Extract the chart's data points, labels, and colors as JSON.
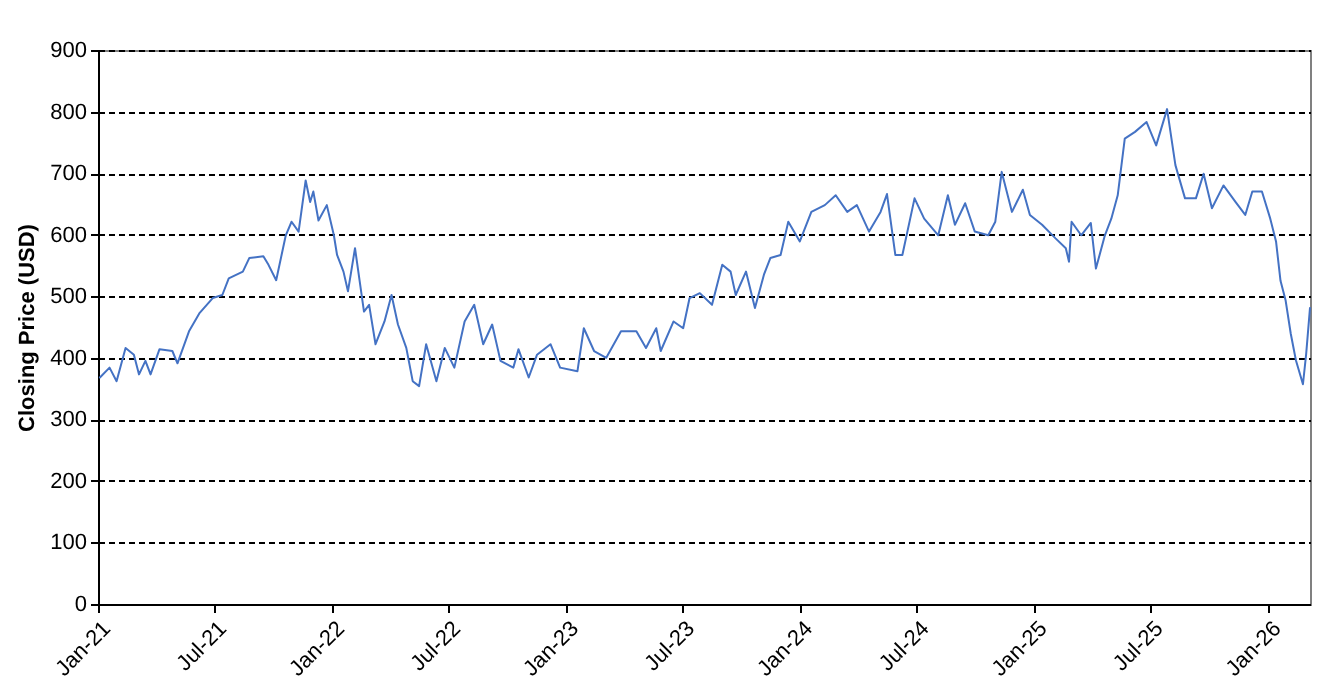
{
  "chart_data": {
    "type": "line",
    "ylabel": "Closing Price (USD)",
    "xlim": [
      "2021-01-01",
      "2026-03-07"
    ],
    "xticks": [
      {
        "value": "2021-01-01",
        "label": "Jan-21"
      },
      {
        "value": "2021-07-01",
        "label": "Jul-21"
      },
      {
        "value": "2022-01-01",
        "label": "Jan-22"
      },
      {
        "value": "2022-07-01",
        "label": "Jul-22"
      },
      {
        "value": "2023-01-01",
        "label": "Jan-23"
      },
      {
        "value": "2023-07-01",
        "label": "Jul-23"
      },
      {
        "value": "2024-01-01",
        "label": "Jan-24"
      },
      {
        "value": "2024-07-01",
        "label": "Jul-24"
      },
      {
        "value": "2025-01-01",
        "label": "Jan-25"
      },
      {
        "value": "2025-07-01",
        "label": "Jul-25"
      },
      {
        "value": "2026-01-01",
        "label": "Jan-26"
      }
    ],
    "ylim": [
      0,
      900
    ],
    "yticks": [
      0,
      100,
      200,
      300,
      400,
      500,
      600,
      700,
      800,
      900
    ],
    "grid": "y",
    "marker": "none",
    "line_style": "solid",
    "series": [
      {
        "color": "#4472c4",
        "x": [
          "2021-01-04",
          "2021-01-19",
          "2021-01-30",
          "2021-02-13",
          "2021-02-26",
          "2021-03-06",
          "2021-03-16",
          "2021-03-24",
          "2021-04-07",
          "2021-04-27",
          "2021-05-05",
          "2021-05-23",
          "2021-06-08",
          "2021-06-29",
          "2021-07-14",
          "2021-07-24",
          "2021-08-15",
          "2021-08-25",
          "2021-09-16",
          "2021-09-24",
          "2021-10-06",
          "2021-10-21",
          "2021-10-30",
          "2021-11-10",
          "2021-11-21",
          "2021-11-28",
          "2021-12-03",
          "2021-12-11",
          "2021-12-24",
          "2022-01-04",
          "2022-01-09",
          "2022-01-19",
          "2022-01-26",
          "2022-02-06",
          "2022-02-20",
          "2022-02-28",
          "2022-03-10",
          "2022-03-24",
          "2022-04-04",
          "2022-04-14",
          "2022-04-27",
          "2022-05-07",
          "2022-05-17",
          "2022-05-28",
          "2022-06-13",
          "2022-06-26",
          "2022-07-11",
          "2022-07-27",
          "2022-08-11",
          "2022-08-25",
          "2022-09-08",
          "2022-09-21",
          "2022-10-11",
          "2022-10-19",
          "2022-11-04",
          "2022-11-17",
          "2022-12-08",
          "2022-12-23",
          "2023-01-19",
          "2023-01-29",
          "2023-02-14",
          "2023-03-05",
          "2023-03-28",
          "2023-04-21",
          "2023-05-06",
          "2023-05-22",
          "2023-05-29",
          "2023-06-18",
          "2023-07-03",
          "2023-07-13",
          "2023-07-29",
          "2023-08-17",
          "2023-09-02",
          "2023-09-15",
          "2023-09-23",
          "2023-10-09",
          "2023-10-23",
          "2023-11-06",
          "2023-11-16",
          "2023-12-02",
          "2023-12-14",
          "2024-01-01",
          "2024-01-19",
          "2024-02-09",
          "2024-02-26",
          "2024-03-15",
          "2024-03-30",
          "2024-04-18",
          "2024-05-06",
          "2024-05-16",
          "2024-05-29",
          "2024-06-09",
          "2024-06-28",
          "2024-07-13",
          "2024-08-04",
          "2024-08-19",
          "2024-08-30",
          "2024-09-15",
          "2024-09-30",
          "2024-10-21",
          "2024-11-01",
          "2024-11-11",
          "2024-11-27",
          "2024-12-14",
          "2024-12-25",
          "2025-01-13",
          "2025-02-03",
          "2025-02-19",
          "2025-02-24",
          "2025-02-28",
          "2025-03-15",
          "2025-03-30",
          "2025-04-07",
          "2025-04-21",
          "2025-05-01",
          "2025-05-11",
          "2025-05-22",
          "2025-06-07",
          "2025-06-25",
          "2025-07-10",
          "2025-07-27",
          "2025-08-09",
          "2025-08-24",
          "2025-09-10",
          "2025-09-22",
          "2025-10-05",
          "2025-10-23",
          "2025-11-11",
          "2025-11-26",
          "2025-12-07",
          "2025-12-22",
          "2026-01-04",
          "2026-01-13",
          "2026-01-20",
          "2026-01-28",
          "2026-02-05",
          "2026-02-13",
          "2026-02-24",
          "2026-03-01",
          "2026-03-07"
        ],
        "values": [
          368,
          384,
          362,
          416,
          405,
          373,
          395,
          373,
          414,
          411,
          391,
          443,
          472,
          497,
          502,
          529,
          540,
          562,
          565,
          551,
          526,
          599,
          621,
          605,
          688,
          653,
          670,
          623,
          648,
          599,
          567,
          540,
          508,
          578,
          475,
          486,
          422,
          459,
          502,
          454,
          416,
          362,
          354,
          422,
          362,
          416,
          384,
          459,
          486,
          422,
          454,
          395,
          384,
          414,
          368,
          405,
          422,
          384,
          378,
          448,
          411,
          400,
          443,
          443,
          416,
          448,
          411,
          459,
          448,
          497,
          505,
          486,
          551,
          540,
          502,
          540,
          481,
          535,
          562,
          567,
          621,
          589,
          637,
          648,
          664,
          637,
          648,
          605,
          637,
          666,
          567,
          567,
          659,
          626,
          599,
          664,
          616,
          651,
          605,
          599,
          621,
          702,
          637,
          673,
          632,
          616,
          594,
          578,
          556,
          621,
          599,
          619,
          545,
          599,
          626,
          664,
          756,
          767,
          783,
          745,
          804,
          713,
          659,
          659,
          699,
          643,
          680,
          653,
          632,
          670,
          670,
          626,
          589,
          525,
          493,
          439,
          396,
          357,
          406,
          481
        ]
      }
    ]
  }
}
